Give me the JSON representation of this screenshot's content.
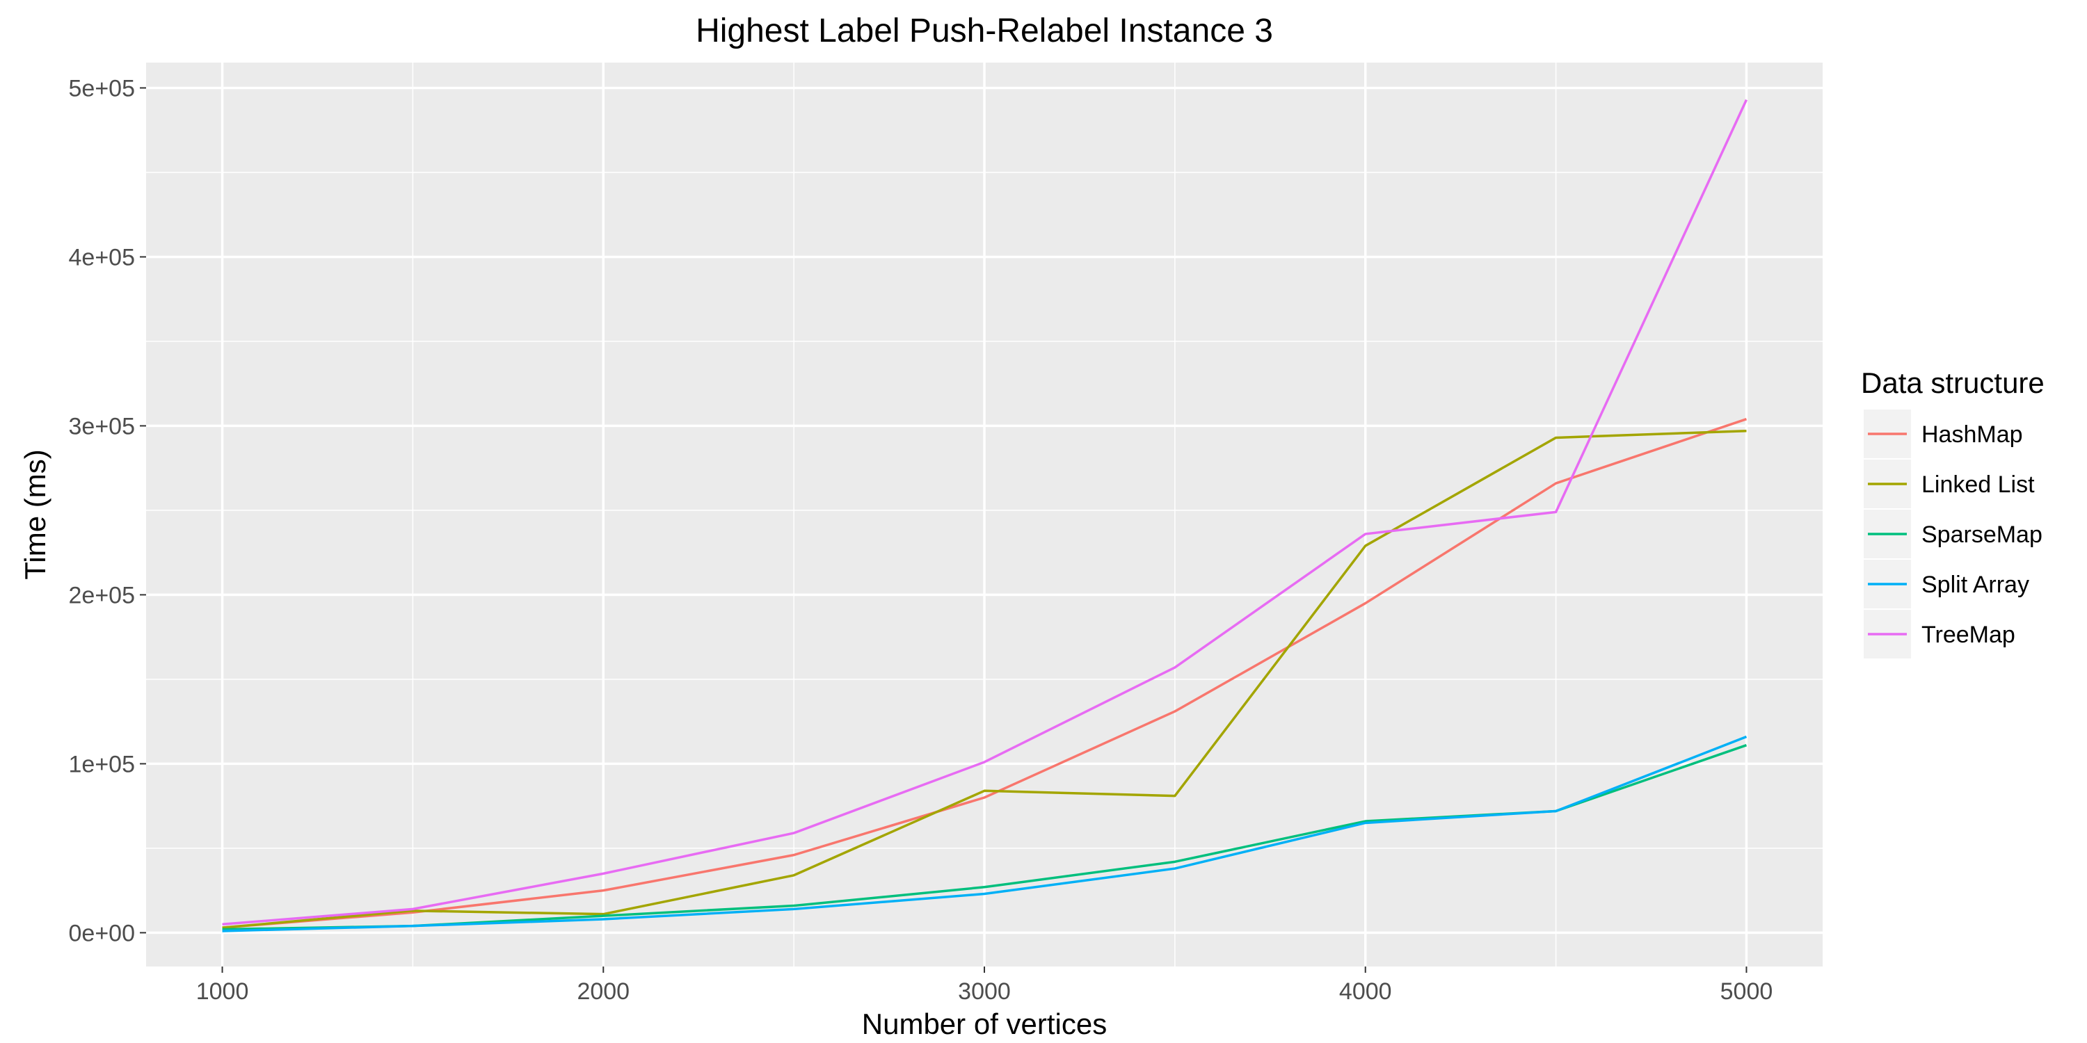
{
  "chart_data": {
    "type": "line",
    "title": "Highest Label Push-Relabel Instance 3",
    "xlabel": "Number of vertices",
    "ylabel": "Time (ms)",
    "x": [
      1000,
      1500,
      2000,
      2500,
      3000,
      3500,
      4000,
      4500,
      5000
    ],
    "xlim": [
      800,
      5200
    ],
    "ylim": [
      -20000,
      515000
    ],
    "xticks": [
      1000,
      2000,
      3000,
      4000,
      5000
    ],
    "xtick_labels": [
      "1000",
      "2000",
      "3000",
      "4000",
      "5000"
    ],
    "yticks": [
      0,
      100000,
      200000,
      300000,
      400000,
      500000
    ],
    "ytick_labels": [
      "0e+00",
      "1e+05",
      "2e+05",
      "3e+05",
      "4e+05",
      "5e+05"
    ],
    "grid": true,
    "legend_title": "Data structure",
    "legend_position": "right",
    "series": [
      {
        "name": "HashMap",
        "color": "#F8766D",
        "values": [
          3000,
          12000,
          25000,
          46000,
          80000,
          131000,
          195000,
          266000,
          304000
        ]
      },
      {
        "name": "Linked List",
        "color": "#A3A500",
        "values": [
          3000,
          13000,
          11000,
          34000,
          84000,
          81000,
          229000,
          293000,
          297000
        ]
      },
      {
        "name": "SparseMap",
        "color": "#00BF7D",
        "values": [
          2000,
          4000,
          10000,
          16000,
          27000,
          42000,
          66000,
          72000,
          111000
        ]
      },
      {
        "name": "Split Array",
        "color": "#00B0F6",
        "values": [
          1000,
          4000,
          8000,
          14000,
          23000,
          38000,
          65000,
          72000,
          116000
        ]
      },
      {
        "name": "TreeMap",
        "color": "#E76BF3",
        "values": [
          5000,
          14000,
          35000,
          59000,
          101000,
          157000,
          236000,
          249000,
          493000
        ]
      }
    ]
  }
}
